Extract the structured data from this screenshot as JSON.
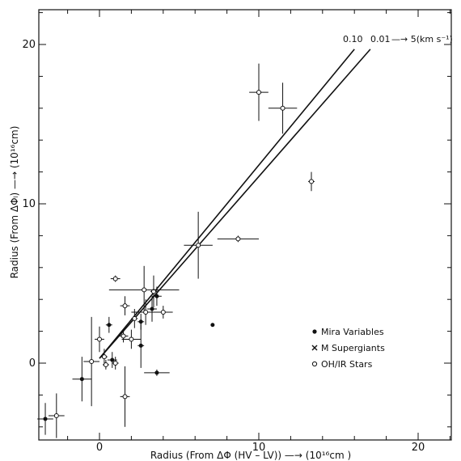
{
  "chart_data": {
    "type": "scatter",
    "title": "",
    "xlabel": "Radius (From ΔΦ (HV – LV)) —→ (10¹⁶cm )",
    "ylabel": "Radius (From ΔΦₗ) —→ (10¹⁶cm)",
    "xlim": [
      -4,
      22
    ],
    "ylim": [
      -4,
      23
    ],
    "x_ticks": [
      "0",
      "10",
      "20"
    ],
    "y_ticks": [
      "0",
      "10",
      "20"
    ],
    "grid": false,
    "legend": {
      "placement": "lower-right",
      "entries": [
        {
          "marker": "filled-circle",
          "label": "Mira Variables"
        },
        {
          "marker": "cross",
          "label": "M  Supergiants"
        },
        {
          "marker": "open-circle",
          "label": "OH/IR Stars"
        }
      ]
    },
    "lines": [
      {
        "label": "0.10",
        "x": [
          0,
          16.0
        ],
        "y": [
          0.3,
          19.7
        ]
      },
      {
        "label": "0.01",
        "x": [
          0,
          17.0
        ],
        "y": [
          0.3,
          19.7
        ]
      }
    ],
    "line_annotation": "—→ 5(km s⁻¹)",
    "points": [
      {
        "x": 10.0,
        "y": 17.0,
        "xerr": 0.6,
        "yerr": 1.8,
        "marker": "open-circle"
      },
      {
        "x": 11.5,
        "y": 16.0,
        "xerr": 0.9,
        "yerr": 1.6,
        "marker": "open-circle"
      },
      {
        "x": 13.3,
        "y": 11.4,
        "xerr": 0.2,
        "yerr": 0.6,
        "marker": "open-circle"
      },
      {
        "x": 8.7,
        "y": 7.8,
        "xerr": 1.3,
        "yerr": 0.2,
        "marker": "open-circle"
      },
      {
        "x": 6.2,
        "y": 7.4,
        "xerr": 0.9,
        "yerr": 2.1,
        "marker": "open-circle"
      },
      {
        "x": 1.0,
        "y": 5.3,
        "xerr": 0.3,
        "yerr": 0.2,
        "marker": "open-circle"
      },
      {
        "x": 3.4,
        "y": 4.5,
        "xerr": 0.2,
        "yerr": 1.0,
        "marker": "open-circle"
      },
      {
        "x": 2.8,
        "y": 4.6,
        "xerr": 2.2,
        "yerr": 1.5,
        "marker": "open-circle"
      },
      {
        "x": 3.6,
        "y": 4.2,
        "xerr": 0.3,
        "yerr": 0.6,
        "marker": "filled-circle"
      },
      {
        "x": 1.6,
        "y": 3.6,
        "xerr": 0.3,
        "yerr": 0.6,
        "marker": "open-circle"
      },
      {
        "x": 3.3,
        "y": 3.4,
        "xerr": 0.3,
        "yerr": 0.8,
        "marker": "filled-circle"
      },
      {
        "x": 4.0,
        "y": 3.2,
        "xerr": 0.6,
        "yerr": 0.4,
        "marker": "open-circle"
      },
      {
        "x": 2.9,
        "y": 3.2,
        "xerr": 0.9,
        "yerr": 0.8,
        "marker": "open-circle"
      },
      {
        "x": 2.2,
        "y": 2.8,
        "xerr": 0.2,
        "yerr": 0.6,
        "marker": "open-circle"
      },
      {
        "x": 2.6,
        "y": 2.6,
        "xerr": 0.2,
        "yerr": 0.5,
        "marker": "filled-circle"
      },
      {
        "x": 0.6,
        "y": 2.4,
        "xerr": 0.2,
        "yerr": 0.5,
        "marker": "filled-circle"
      },
      {
        "x": 1.5,
        "y": 1.7,
        "xerr": 0.3,
        "yerr": 0.4,
        "marker": "open-circle"
      },
      {
        "x": 0.0,
        "y": 1.5,
        "xerr": 0.3,
        "yerr": 0.8,
        "marker": "open-circle"
      },
      {
        "x": 2.0,
        "y": 1.5,
        "xerr": 0.6,
        "yerr": 0.6,
        "marker": "open-circle"
      },
      {
        "x": 2.6,
        "y": 1.1,
        "xerr": 0.2,
        "yerr": 1.4,
        "marker": "filled-circle"
      },
      {
        "x": 0.3,
        "y": 0.4,
        "xerr": 0.2,
        "yerr": 0.5,
        "marker": "open-circle"
      },
      {
        "x": 0.8,
        "y": 0.2,
        "xerr": 0.3,
        "yerr": 0.5,
        "marker": "filled-circle"
      },
      {
        "x": 1.0,
        "y": 0.0,
        "xerr": 0.2,
        "yerr": 0.4,
        "marker": "open-circle"
      },
      {
        "x": 0.4,
        "y": -0.1,
        "xerr": 0.2,
        "yerr": 0.3,
        "marker": "open-circle"
      },
      {
        "x": -0.5,
        "y": 0.1,
        "xerr": 0.5,
        "yerr": 2.8,
        "marker": "open-circle"
      },
      {
        "x": -1.1,
        "y": -1.0,
        "xerr": 0.6,
        "yerr": 1.4,
        "marker": "filled-circle"
      },
      {
        "x": 3.6,
        "y": -0.6,
        "xerr": 0.8,
        "yerr": 0.2,
        "marker": "filled-circle"
      },
      {
        "x": 1.6,
        "y": -2.1,
        "xerr": 0.3,
        "yerr": 1.9,
        "marker": "open-circle"
      },
      {
        "x": -2.7,
        "y": -3.3,
        "xerr": 0.5,
        "yerr": 1.4,
        "marker": "open-circle"
      },
      {
        "x": -3.4,
        "y": -3.5,
        "xerr": 0.5,
        "yerr": 1.0,
        "marker": "filled-circle"
      },
      {
        "x": 7.1,
        "y": 2.4,
        "xerr": 0,
        "yerr": 0,
        "marker": "filled-circle"
      }
    ]
  }
}
